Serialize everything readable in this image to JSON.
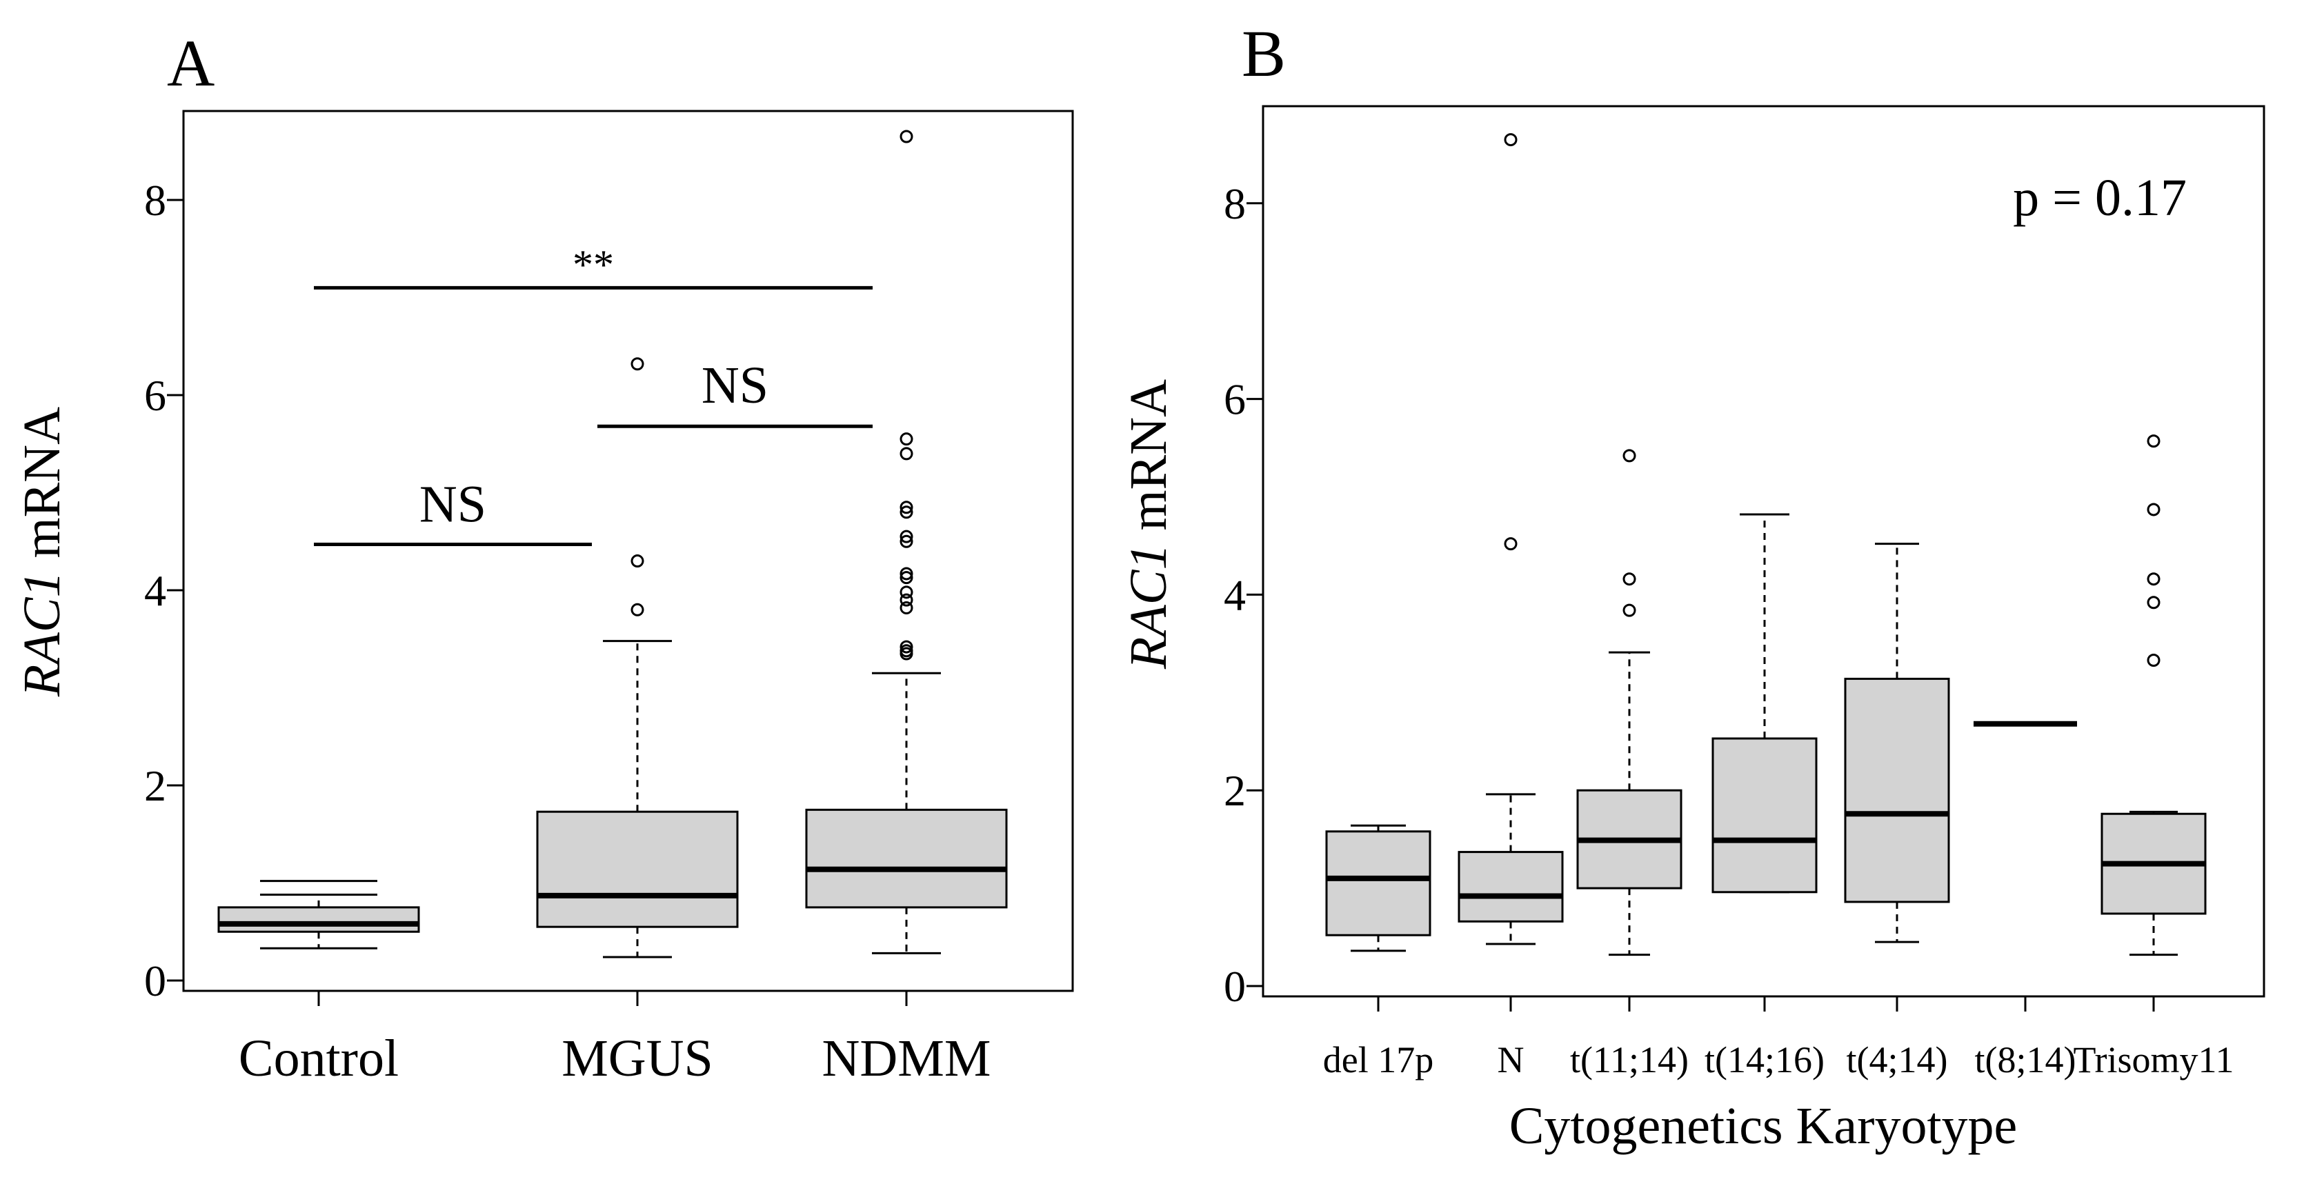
{
  "chart_data": [
    {
      "type": "box",
      "panel_label": "A",
      "ylabel_italic": "RAC1",
      "ylabel_rest": " mRNA",
      "xlabel": "",
      "ylim": [
        0,
        9
      ],
      "yticks": [
        0,
        2,
        4,
        6,
        8
      ],
      "ytick_labels": [
        "0",
        "2",
        "4",
        "6",
        "8"
      ],
      "categories": [
        "Control",
        "MGUS",
        "NDMM"
      ],
      "boxes": [
        {
          "name": "Control",
          "whisker_low": 0.33,
          "q1": 0.5,
          "median": 0.58,
          "q3": 0.75,
          "whisker_high": 0.88,
          "cap_high_extra": 1.02,
          "outliers": []
        },
        {
          "name": "MGUS",
          "whisker_low": 0.24,
          "q1": 0.55,
          "median": 0.87,
          "q3": 1.73,
          "whisker_high": 3.48,
          "outliers": [
            3.8,
            4.3,
            6.32
          ]
        },
        {
          "name": "NDMM",
          "whisker_low": 0.28,
          "q1": 0.75,
          "median": 1.14,
          "q3": 1.75,
          "whisker_high": 3.15,
          "outliers": [
            3.35,
            3.38,
            3.42,
            3.82,
            3.9,
            3.98,
            4.13,
            4.17,
            4.5,
            4.55,
            4.8,
            4.85,
            5.4,
            5.55,
            8.65
          ]
        }
      ],
      "annotations": [
        {
          "text": "**",
          "from": "Control",
          "to": "NDMM",
          "y": 7.1,
          "text_y": 7.45
        },
        {
          "text": "NS",
          "from": "MGUS",
          "to": "NDMM",
          "y": 5.68,
          "text_y": 6.12
        },
        {
          "text": "NS",
          "from": "Control",
          "to": "MGUS",
          "y": 4.47,
          "text_y": 4.9
        }
      ]
    },
    {
      "type": "box",
      "panel_label": "B",
      "ylabel_italic": "RAC1",
      "ylabel_rest": " mRNA",
      "xlabel": "Cytogenetics Karyotype",
      "ylim": [
        0,
        9
      ],
      "yticks": [
        0,
        2,
        4,
        6,
        8
      ],
      "ytick_labels": [
        "0",
        "2",
        "4",
        "6",
        "8"
      ],
      "categories": [
        "del 17p",
        "N",
        "t(11;14)",
        "t(14;16)",
        "t(4;14)",
        "t(8;14)",
        "Trisomy11"
      ],
      "p_value_text": "p = 0.17",
      "boxes": [
        {
          "name": "del 17p",
          "whisker_low": 0.36,
          "q1": 0.52,
          "median": 1.1,
          "q3": 1.58,
          "whisker_high": 1.64,
          "outliers": []
        },
        {
          "name": "N",
          "whisker_low": 0.43,
          "q1": 0.66,
          "median": 0.92,
          "q3": 1.37,
          "whisker_high": 1.96,
          "outliers": [
            4.52,
            8.65
          ]
        },
        {
          "name": "t(11;14)",
          "whisker_low": 0.32,
          "q1": 1.0,
          "median": 1.49,
          "q3": 2.0,
          "whisker_high": 3.41,
          "outliers": [
            3.84,
            4.16,
            5.42
          ]
        },
        {
          "name": "t(14;16)",
          "whisker_low": 0.96,
          "q1": 0.96,
          "median": 1.49,
          "q3": 2.53,
          "whisker_high": 4.82,
          "outliers": []
        },
        {
          "name": "t(4;14)",
          "whisker_low": 0.45,
          "q1": 0.86,
          "median": 1.76,
          "q3": 3.14,
          "whisker_high": 4.52,
          "outliers": []
        },
        {
          "name": "t(8;14)",
          "whisker_low": 2.68,
          "q1": 2.68,
          "median": 2.68,
          "q3": 2.68,
          "whisker_high": 2.68,
          "outliers": []
        },
        {
          "name": "Trisomy11",
          "whisker_low": 0.32,
          "q1": 0.74,
          "median": 1.25,
          "q3": 1.76,
          "whisker_high": 1.78,
          "outliers": [
            3.33,
            3.92,
            4.16,
            4.87,
            5.57
          ]
        }
      ]
    }
  ]
}
